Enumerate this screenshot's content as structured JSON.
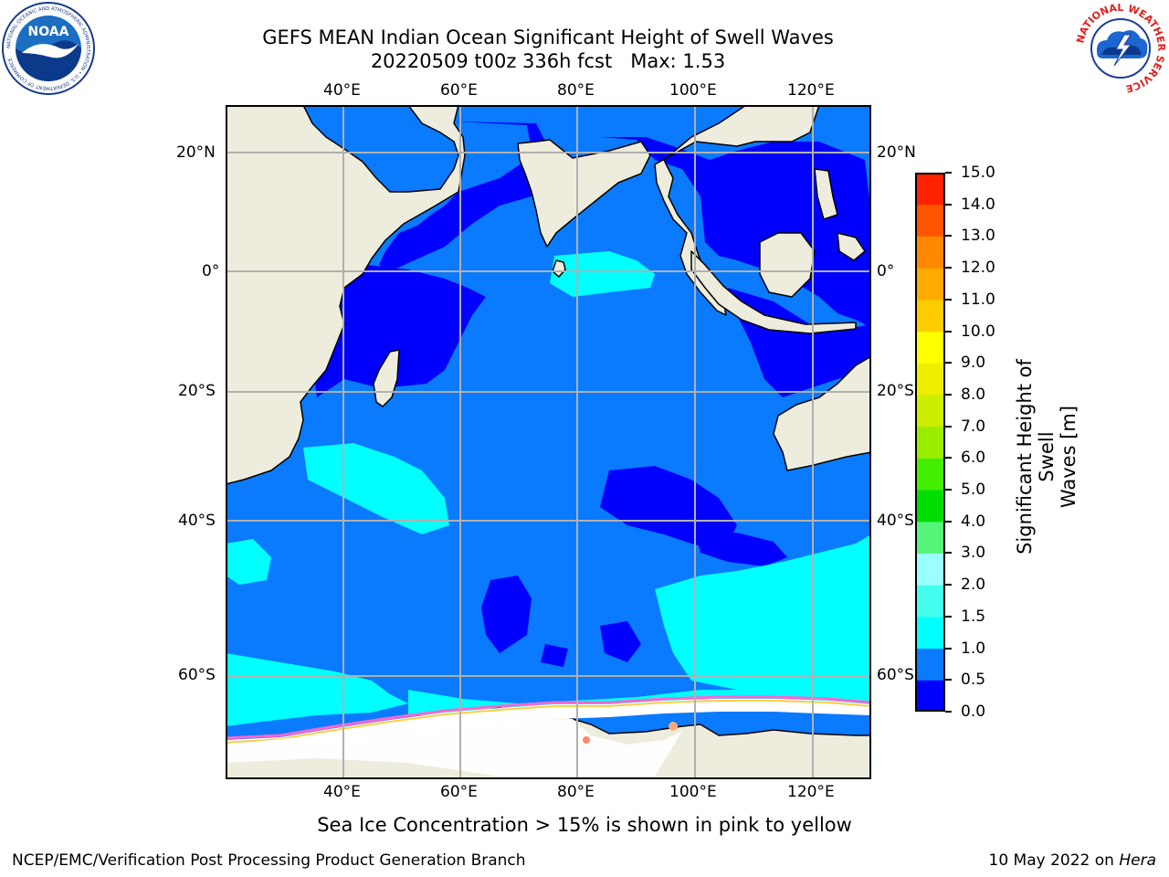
{
  "title": {
    "line1": "GEFS MEAN Indian Ocean Significant Height of Swell Waves",
    "line2_run": "20220509 t00z 336h fcst",
    "line2_max": "Max: 1.53"
  },
  "map": {
    "lon_labels": [
      "40°E",
      "60°E",
      "80°E",
      "100°E",
      "120°E"
    ],
    "lat_labels": [
      "20°N",
      "0°",
      "20°S",
      "40°S",
      "60°S"
    ],
    "colors": {
      "land": "#eeecdc",
      "ocean_low": "#0000ff",
      "ocean_mid": "#0a7aff",
      "ocean_high": "#00ffff",
      "ice": "#ffffff"
    }
  },
  "colorbar": {
    "label_line1": "Significant Height of Swell",
    "label_line2": "Waves [m]",
    "ticks": [
      "0.0",
      "0.5",
      "1.0",
      "1.5",
      "2.0",
      "3.0",
      "4.0",
      "5.0",
      "6.0",
      "7.0",
      "8.0",
      "9.0",
      "10.0",
      "11.0",
      "12.0",
      "13.0",
      "14.0",
      "15.0"
    ],
    "colors": [
      "#0000ff",
      "#0a7aff",
      "#00ffff",
      "#44ffee",
      "#99ffff",
      "#55f57a",
      "#00dd00",
      "#44ee00",
      "#99ee00",
      "#ccee00",
      "#eeee00",
      "#ffff00",
      "#ffcc00",
      "#ffaa00",
      "#ff8800",
      "#ff5500",
      "#ff2200",
      "#ff0000"
    ]
  },
  "notes": {
    "ice_note": "Sea Ice Concentration > 15% is shown in pink to yellow"
  },
  "footer": {
    "left": "NCEP/EMC/Verification Post Processing Product Generation Branch",
    "date": "10 May 2022 on",
    "machine": "Hera"
  },
  "logos": {
    "noaa_text": "NOAA",
    "noaa_ring": "NATIONAL OCEANIC AND ATMOSPHERIC ADMINISTRATION • U.S. DEPARTMENT OF COMMERCE",
    "nws_ring": "NATIONAL WEATHER SERVICE"
  }
}
